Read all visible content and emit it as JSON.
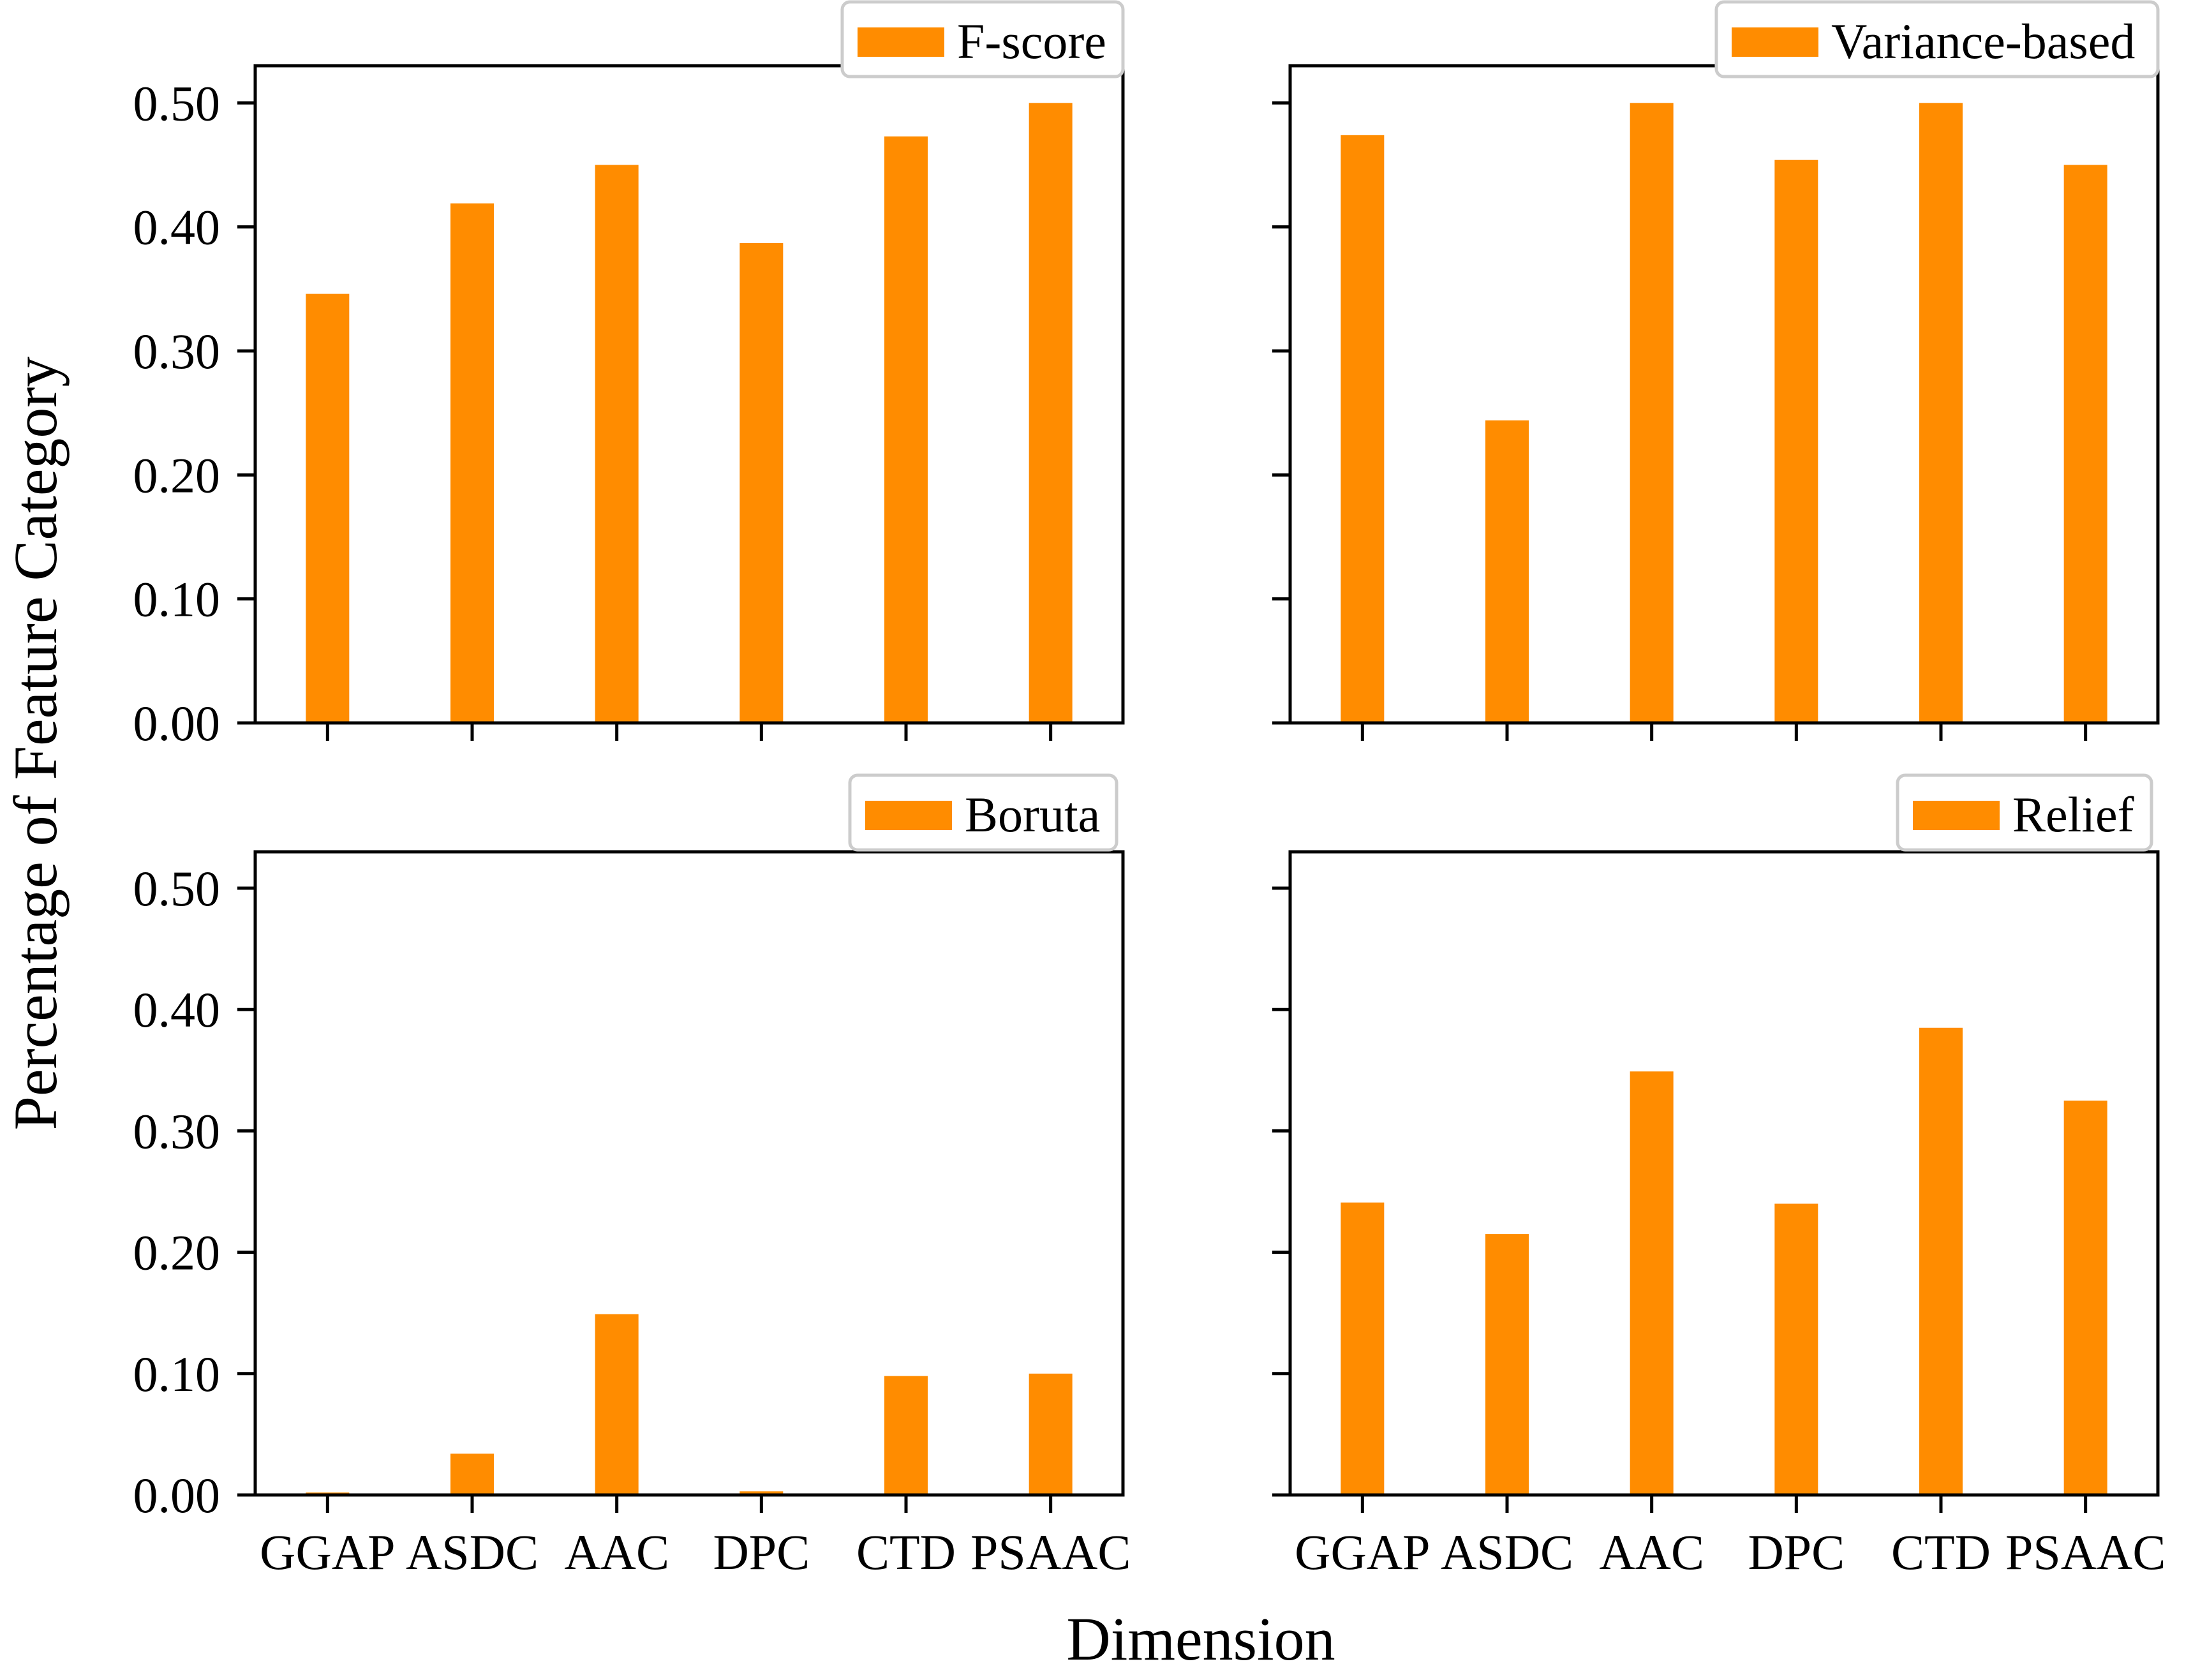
{
  "figure": {
    "ylabel": "Percentage of Feature Category",
    "xlabel": "Dimension",
    "bar_color": "#ff8c00"
  },
  "chart_data": [
    {
      "type": "bar",
      "legend": "F-score",
      "categories": [
        "GGAP",
        "ASDC",
        "AAC",
        "DPC",
        "CTD",
        "PSAAC"
      ],
      "values": [
        0.346,
        0.419,
        0.45,
        0.387,
        0.473,
        0.5
      ],
      "yticks": [
        "0.00",
        "0.10",
        "0.20",
        "0.30",
        "0.40",
        "0.50"
      ],
      "ylim": [
        0,
        0.53
      ],
      "legend_position": "top-right"
    },
    {
      "type": "bar",
      "legend": "Variance-based",
      "categories": [
        "GGAP",
        "ASDC",
        "AAC",
        "DPC",
        "CTD",
        "PSAAC"
      ],
      "values": [
        0.474,
        0.244,
        0.5,
        0.454,
        0.5,
        0.45
      ],
      "yticks": [
        "0.00",
        "0.10",
        "0.20",
        "0.30",
        "0.40",
        "0.50"
      ],
      "ylim": [
        0,
        0.53
      ],
      "legend_position": "top-right"
    },
    {
      "type": "bar",
      "legend": "Boruta",
      "categories": [
        "GGAP",
        "ASDC",
        "AAC",
        "DPC",
        "CTD",
        "PSAAC"
      ],
      "values": [
        0.002,
        0.034,
        0.149,
        0.003,
        0.098,
        0.1
      ],
      "yticks": [
        "0.00",
        "0.10",
        "0.20",
        "0.30",
        "0.40",
        "0.50"
      ],
      "ylim": [
        0,
        0.53
      ],
      "legend_position": "top-right"
    },
    {
      "type": "bar",
      "legend": "Relief",
      "categories": [
        "GGAP",
        "ASDC",
        "AAC",
        "DPC",
        "CTD",
        "PSAAC"
      ],
      "values": [
        0.241,
        0.215,
        0.349,
        0.24,
        0.385,
        0.325
      ],
      "yticks": [
        "0.00",
        "0.10",
        "0.20",
        "0.30",
        "0.40",
        "0.50"
      ],
      "ylim": [
        0,
        0.53
      ],
      "legend_position": "top-right"
    }
  ]
}
